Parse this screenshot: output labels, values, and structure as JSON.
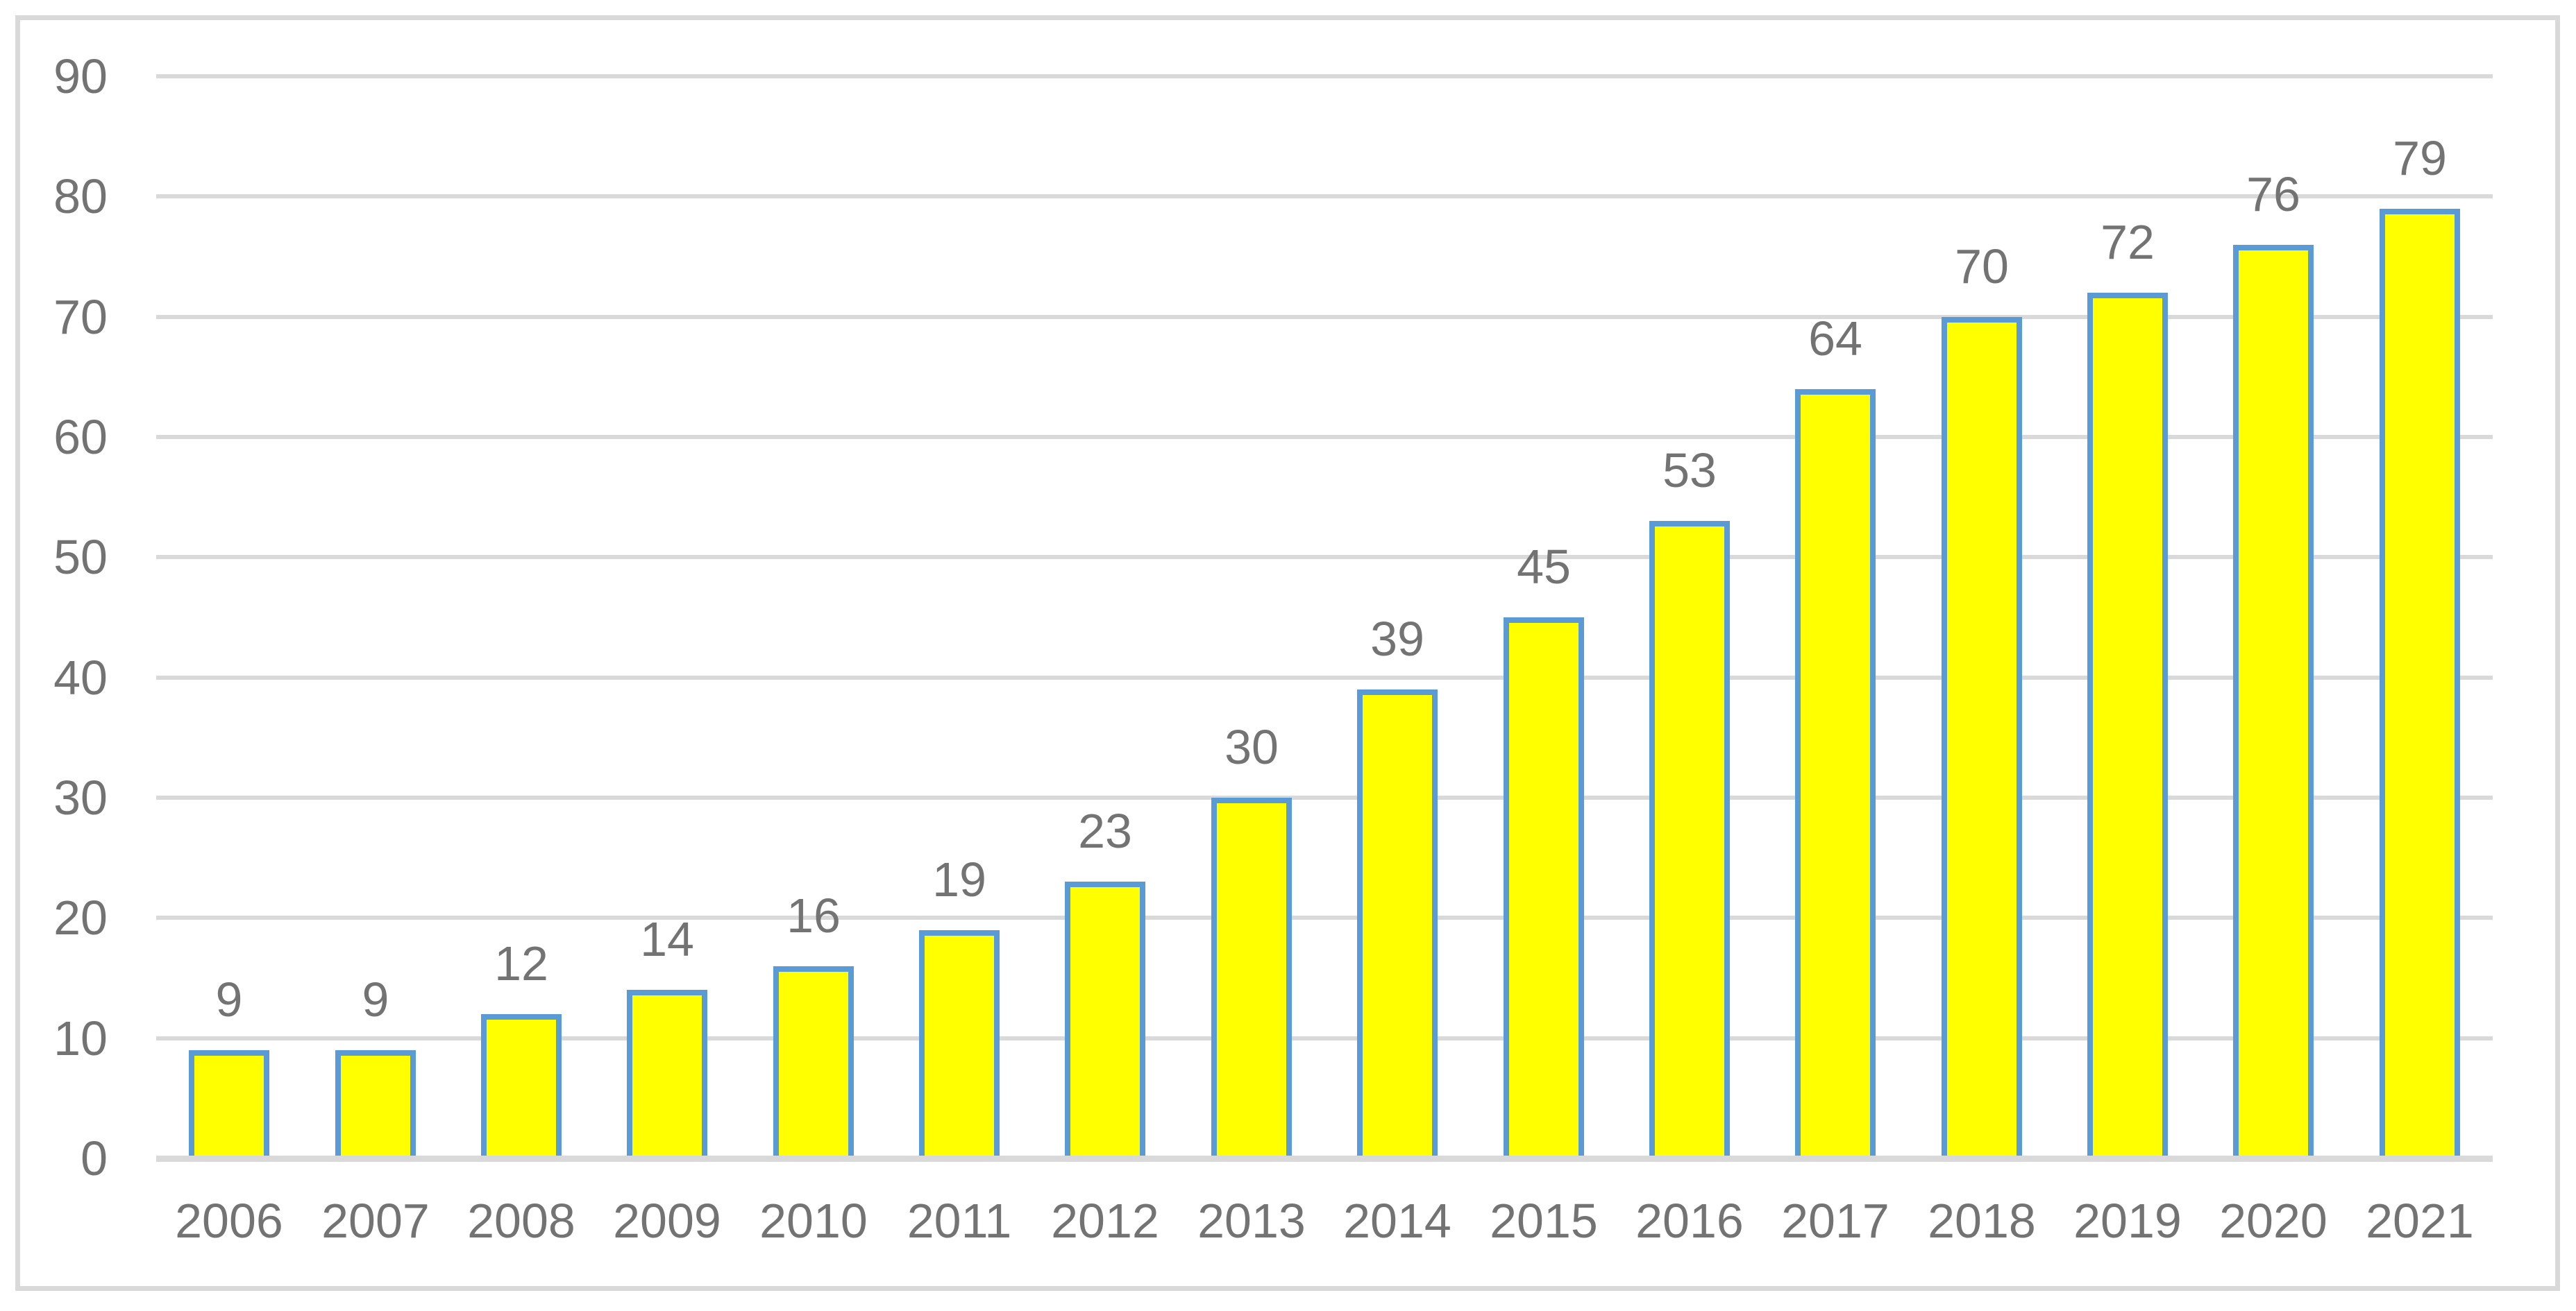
{
  "chart_data": {
    "type": "bar",
    "title": "",
    "xlabel": "",
    "ylabel": "",
    "categories": [
      "2006",
      "2007",
      "2008",
      "2009",
      "2010",
      "2011",
      "2012",
      "2013",
      "2014",
      "2015",
      "2016",
      "2017",
      "2018",
      "2019",
      "2020",
      "2021"
    ],
    "values": [
      9,
      9,
      12,
      14,
      16,
      19,
      23,
      30,
      39,
      45,
      53,
      64,
      70,
      72,
      76,
      79
    ],
    "data_labels": [
      9,
      9,
      12,
      14,
      16,
      19,
      23,
      30,
      39,
      45,
      53,
      64,
      70,
      72,
      76,
      79
    ],
    "ylim": [
      0,
      90
    ],
    "yticks": [
      0,
      10,
      20,
      30,
      40,
      50,
      60,
      70,
      80,
      90
    ],
    "grid": true,
    "legend": false,
    "colors": {
      "bar_fill": "#FFFF00",
      "bar_border": "#5B9BD5",
      "gridline": "#D9D9D9",
      "axis_line": "#D9D9D9",
      "frame_border": "#D9D9D9",
      "label_text": "#737373",
      "background": "#FFFFFF"
    }
  }
}
